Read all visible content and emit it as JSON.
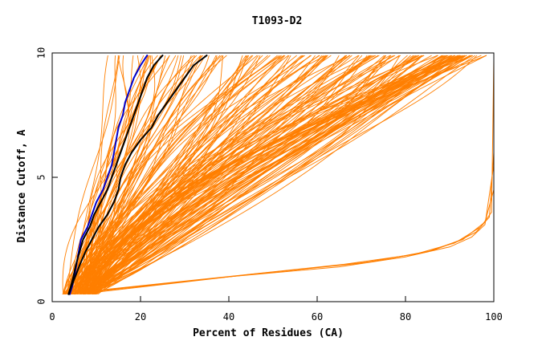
{
  "chart_data": {
    "type": "line",
    "title": "T1093-D2",
    "xlabel": "Percent of Residues (CA)",
    "ylabel": "Distance Cutoff, A",
    "xlim": [
      0,
      100
    ],
    "ylim": [
      0,
      10
    ],
    "x_ticks": [
      0,
      20,
      40,
      60,
      80,
      100
    ],
    "y_ticks": [
      0,
      5,
      10
    ],
    "grid": false,
    "legend": "none",
    "colors": {
      "bulk": "#ff7f00",
      "highlight_blue": "#0000cc",
      "highlight_black": "#000000"
    },
    "highlighted_series": [
      {
        "color": "#0000cc",
        "points": [
          [
            4,
            0.3
          ],
          [
            4.5,
            0.6
          ],
          [
            5,
            1
          ],
          [
            5.5,
            1.5
          ],
          [
            6,
            2
          ],
          [
            6.5,
            2.5
          ],
          [
            8,
            3
          ],
          [
            9,
            3.5
          ],
          [
            10,
            4
          ],
          [
            11.5,
            4.5
          ],
          [
            12.5,
            5
          ],
          [
            13.5,
            5.5
          ],
          [
            14,
            6
          ],
          [
            14.5,
            6.5
          ],
          [
            15,
            7
          ],
          [
            16,
            7.5
          ],
          [
            16.5,
            8
          ],
          [
            17.5,
            8.5
          ],
          [
            18.5,
            9
          ],
          [
            20,
            9.5
          ],
          [
            21.5,
            9.9
          ]
        ]
      },
      {
        "color": "#000000",
        "points": [
          [
            3.7,
            0.3
          ],
          [
            4.2,
            0.6
          ],
          [
            4.8,
            1
          ],
          [
            5.4,
            1.5
          ],
          [
            6.2,
            2
          ],
          [
            7,
            2.5
          ],
          [
            8.5,
            3
          ],
          [
            9.5,
            3.5
          ],
          [
            11,
            4
          ],
          [
            12.5,
            4.5
          ],
          [
            13.5,
            5
          ],
          [
            14.5,
            5.5
          ],
          [
            15.5,
            6
          ],
          [
            16.5,
            6.5
          ],
          [
            17.5,
            7
          ],
          [
            18.5,
            7.5
          ],
          [
            19.5,
            8
          ],
          [
            20.5,
            8.5
          ],
          [
            21.5,
            9
          ],
          [
            23,
            9.5
          ],
          [
            25,
            9.9
          ]
        ]
      },
      {
        "color": "#000000",
        "points": [
          [
            3.8,
            0.3
          ],
          [
            4.3,
            0.6
          ],
          [
            5.2,
            1
          ],
          [
            6.3,
            1.5
          ],
          [
            7.5,
            2
          ],
          [
            9,
            2.5
          ],
          [
            10.5,
            3
          ],
          [
            12.5,
            3.5
          ],
          [
            14,
            4
          ],
          [
            15,
            4.5
          ],
          [
            15.5,
            5
          ],
          [
            16.5,
            5.5
          ],
          [
            18,
            6
          ],
          [
            20,
            6.5
          ],
          [
            22.5,
            7
          ],
          [
            24,
            7.5
          ],
          [
            26,
            8
          ],
          [
            28,
            8.5
          ],
          [
            30,
            9
          ],
          [
            32,
            9.5
          ],
          [
            35,
            9.9
          ]
        ]
      }
    ],
    "bulk_series_count": 180,
    "bulk_series_range": {
      "start_x_at_y0_3": [
        2.5,
        10
      ],
      "end_x_at_y9_9": [
        12,
        100
      ]
    }
  }
}
